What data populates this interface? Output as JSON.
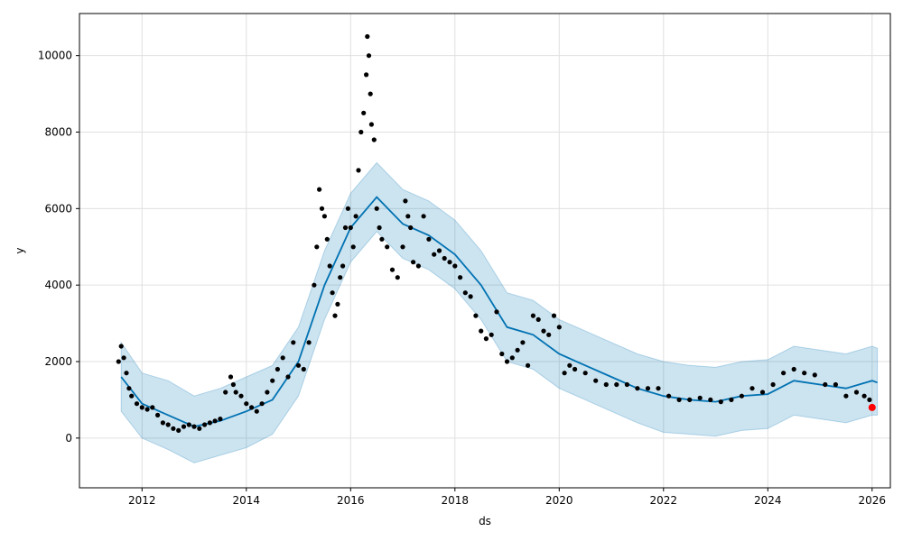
{
  "chart_data": {
    "type": "scatter",
    "title": "",
    "xlabel": "ds",
    "ylabel": "y",
    "xlim": [
      2010.8,
      2026.35
    ],
    "ylim": [
      -1300,
      11100
    ],
    "grid": true,
    "x_ticks": [
      {
        "value": 2012,
        "label": "2012"
      },
      {
        "value": 2014,
        "label": "2014"
      },
      {
        "value": 2016,
        "label": "2016"
      },
      {
        "value": 2018,
        "label": "2018"
      },
      {
        "value": 2020,
        "label": "2020"
      },
      {
        "value": 2022,
        "label": "2022"
      },
      {
        "value": 2024,
        "label": "2024"
      },
      {
        "value": 2026,
        "label": "2026"
      }
    ],
    "y_ticks": [
      {
        "value": 0,
        "label": "0"
      },
      {
        "value": 2000,
        "label": "2000"
      },
      {
        "value": 4000,
        "label": "4000"
      },
      {
        "value": 6000,
        "label": "6000"
      },
      {
        "value": 8000,
        "label": "8000"
      },
      {
        "value": 10000,
        "label": "10000"
      }
    ],
    "colors": {
      "observed": "#000000",
      "forecast_line": "#0072B2",
      "uncertainty_band": "#0072B2",
      "highlight": "#ff0000",
      "grid": "#e0e0e0"
    },
    "forecast": {
      "x": [
        2011.6,
        2012.0,
        2012.5,
        2013.0,
        2013.5,
        2014.0,
        2014.5,
        2015.0,
        2015.5,
        2016.0,
        2016.5,
        2017.0,
        2017.5,
        2018.0,
        2018.5,
        2019.0,
        2019.5,
        2020.0,
        2020.5,
        2021.0,
        2021.5,
        2022.0,
        2022.5,
        2023.0,
        2023.5,
        2024.0,
        2024.5,
        2025.0,
        2025.5,
        2026.0,
        2026.1
      ],
      "yhat": [
        1600,
        900,
        600,
        300,
        450,
        700,
        1000,
        2000,
        4000,
        5500,
        6300,
        5600,
        5300,
        4800,
        4000,
        2900,
        2700,
        2200,
        1900,
        1600,
        1300,
        1100,
        1000,
        950,
        1100,
        1150,
        1500,
        1400,
        1300,
        1500,
        1450
      ],
      "yhat_lower": [
        700,
        0,
        -300,
        -650,
        -450,
        -250,
        100,
        1100,
        3100,
        4600,
        5400,
        4700,
        4400,
        3900,
        3100,
        2000,
        1800,
        1300,
        1000,
        700,
        400,
        150,
        100,
        50,
        200,
        250,
        600,
        500,
        400,
        600,
        600
      ],
      "yhat_upper": [
        2500,
        1700,
        1500,
        1100,
        1300,
        1600,
        1900,
        2900,
        4900,
        6400,
        7200,
        6500,
        6200,
        5700,
        4900,
        3800,
        3600,
        3100,
        2800,
        2500,
        2200,
        2000,
        1900,
        1850,
        2000,
        2050,
        2400,
        2300,
        2200,
        2400,
        2350
      ]
    },
    "observed": {
      "x": [
        2011.55,
        2011.6,
        2011.65,
        2011.7,
        2011.75,
        2011.8,
        2011.9,
        2012.0,
        2012.1,
        2012.2,
        2012.3,
        2012.4,
        2012.5,
        2012.6,
        2012.7,
        2012.8,
        2012.9,
        2013.0,
        2013.1,
        2013.2,
        2013.3,
        2013.4,
        2013.5,
        2013.6,
        2013.7,
        2013.75,
        2013.8,
        2013.9,
        2014.0,
        2014.1,
        2014.2,
        2014.3,
        2014.4,
        2014.5,
        2014.6,
        2014.7,
        2014.8,
        2014.9,
        2015.0,
        2015.1,
        2015.2,
        2015.3,
        2015.35,
        2015.4,
        2015.45,
        2015.5,
        2015.55,
        2015.6,
        2015.65,
        2015.7,
        2015.75,
        2015.8,
        2015.85,
        2015.9,
        2015.95,
        2016.0,
        2016.05,
        2016.1,
        2016.15,
        2016.2,
        2016.25,
        2016.3,
        2016.32,
        2016.35,
        2016.38,
        2016.4,
        2016.45,
        2016.5,
        2016.55,
        2016.6,
        2016.7,
        2016.8,
        2016.9,
        2017.0,
        2017.05,
        2017.1,
        2017.15,
        2017.2,
        2017.3,
        2017.4,
        2017.5,
        2017.6,
        2017.7,
        2017.8,
        2017.9,
        2018.0,
        2018.1,
        2018.2,
        2018.3,
        2018.4,
        2018.5,
        2018.6,
        2018.7,
        2018.8,
        2018.9,
        2019.0,
        2019.1,
        2019.2,
        2019.3,
        2019.4,
        2019.5,
        2019.6,
        2019.7,
        2019.8,
        2019.9,
        2020.0,
        2020.1,
        2020.2,
        2020.3,
        2020.5,
        2020.7,
        2020.9,
        2021.1,
        2021.3,
        2021.5,
        2021.7,
        2021.9,
        2022.1,
        2022.3,
        2022.5,
        2022.7,
        2022.9,
        2023.1,
        2023.3,
        2023.5,
        2023.7,
        2023.9,
        2024.1,
        2024.3,
        2024.5,
        2024.7,
        2024.9,
        2025.1,
        2025.3,
        2025.5,
        2025.7,
        2025.85,
        2025.95
      ],
      "y": [
        2000,
        2400,
        2100,
        1700,
        1300,
        1100,
        900,
        800,
        750,
        800,
        600,
        400,
        350,
        250,
        200,
        300,
        350,
        300,
        250,
        350,
        400,
        450,
        500,
        1200,
        1600,
        1400,
        1200,
        1100,
        900,
        800,
        700,
        900,
        1200,
        1500,
        1800,
        2100,
        1600,
        2500,
        1900,
        1800,
        2500,
        4000,
        5000,
        6500,
        6000,
        5800,
        5200,
        4500,
        3800,
        3200,
        3500,
        4200,
        4500,
        5500,
        6000,
        5500,
        5000,
        5800,
        7000,
        8000,
        8500,
        9500,
        10500,
        10000,
        9000,
        8200,
        7800,
        6000,
        5500,
        5200,
        5000,
        4400,
        4200,
        5000,
        6200,
        5800,
        5500,
        4600,
        4500,
        5800,
        5200,
        4800,
        4900,
        4700,
        4600,
        4500,
        4200,
        3800,
        3700,
        3200,
        2800,
        2600,
        2700,
        3300,
        2200,
        2000,
        2100,
        2300,
        2500,
        1900,
        3200,
        3100,
        2800,
        2700,
        3200,
        2900,
        1700,
        1900,
        1800,
        1700,
        1500,
        1400,
        1400,
        1400,
        1300,
        1300,
        1300,
        1100,
        1000,
        1000,
        1050,
        1000,
        950,
        1000,
        1100,
        1300,
        1200,
        1400,
        1700,
        1800,
        1700,
        1650,
        1400,
        1400,
        1100,
        1200,
        1100,
        1000
      ],
      "highlight": {
        "x": 2026.0,
        "y": 800
      }
    }
  }
}
